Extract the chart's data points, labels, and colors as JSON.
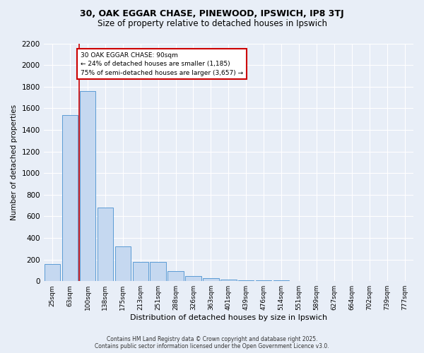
{
  "title_line1": "30, OAK EGGAR CHASE, PINEWOOD, IPSWICH, IP8 3TJ",
  "title_line2": "Size of property relative to detached houses in Ipswich",
  "xlabel": "Distribution of detached houses by size in Ipswich",
  "ylabel": "Number of detached properties",
  "categories": [
    "25sqm",
    "63sqm",
    "100sqm",
    "138sqm",
    "175sqm",
    "213sqm",
    "251sqm",
    "288sqm",
    "326sqm",
    "363sqm",
    "401sqm",
    "439sqm",
    "476sqm",
    "514sqm",
    "551sqm",
    "589sqm",
    "627sqm",
    "664sqm",
    "702sqm",
    "739sqm",
    "777sqm"
  ],
  "values": [
    160,
    1540,
    1760,
    680,
    320,
    175,
    175,
    90,
    45,
    25,
    15,
    10,
    8,
    5,
    3,
    2,
    1,
    1,
    0,
    0,
    0
  ],
  "bar_color": "#c5d8f0",
  "bar_edge_color": "#5b9bd5",
  "vline_color": "#cc0000",
  "annotation_text": "30 OAK EGGAR CHASE: 90sqm\n← 24% of detached houses are smaller (1,185)\n75% of semi-detached houses are larger (3,657) →",
  "annotation_box_color": "#ffffff",
  "annotation_box_edge": "#cc0000",
  "ylim": [
    0,
    2200
  ],
  "yticks": [
    0,
    200,
    400,
    600,
    800,
    1000,
    1200,
    1400,
    1600,
    1800,
    2000,
    2200
  ],
  "bg_color": "#e8eef7",
  "grid_color": "#ffffff",
  "footer_line1": "Contains HM Land Registry data © Crown copyright and database right 2025.",
  "footer_line2": "Contains public sector information licensed under the Open Government Licence v3.0."
}
